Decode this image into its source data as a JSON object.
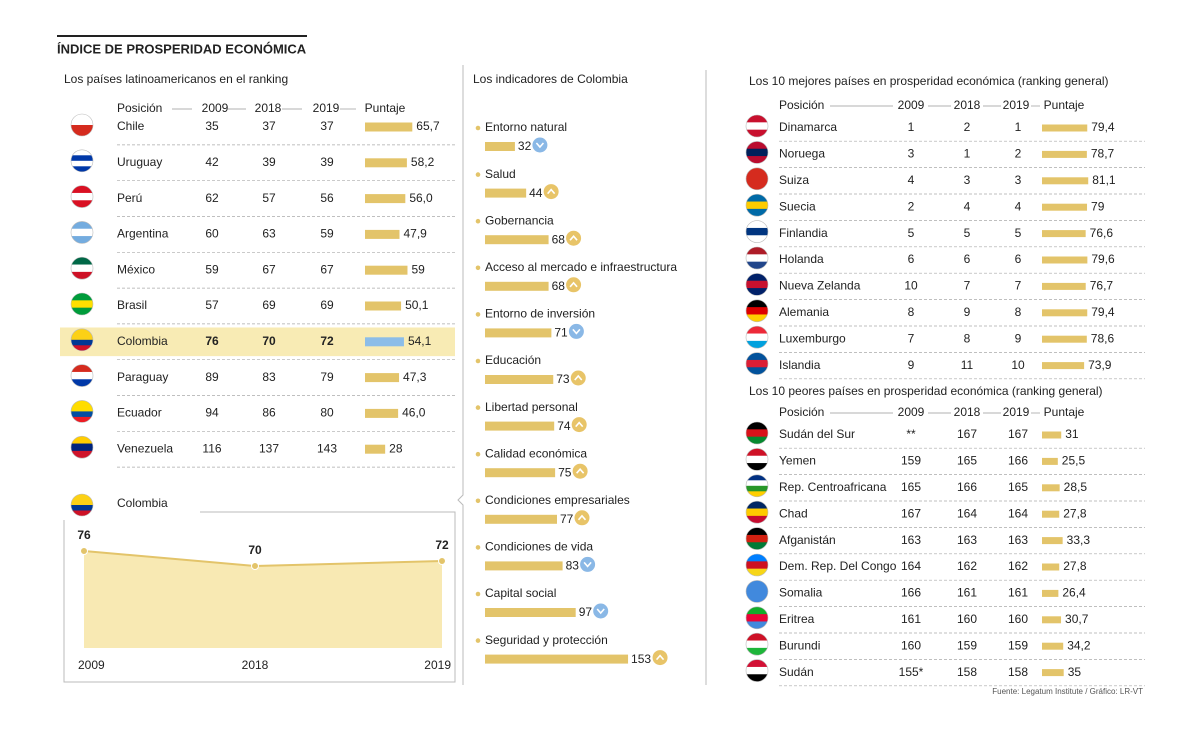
{
  "title": "ÍNDICE DE PROSPERIDAD ECONÓMICA",
  "latam": {
    "subtitle": "Los países latinoamericanos en el ranking",
    "headers": [
      "Posición",
      "2009",
      "2018",
      "2019",
      "Puntaje"
    ],
    "bar_color": "#e3c46a",
    "highlight_color": "#8cbde8",
    "highlight_fill": "#f8ebb4",
    "rows": [
      {
        "country": "Chile",
        "flag": [
          "#ffffff",
          "#d52b1e"
        ],
        "ranks": [
          35,
          37,
          37
        ],
        "score": {
          "value": 65.7,
          "label": "65,7"
        }
      },
      {
        "country": "Uruguay",
        "flag": [
          "#ffffff",
          "#0038a8",
          "#ffffff",
          "#0038a8"
        ],
        "ranks": [
          42,
          39,
          39
        ],
        "score": {
          "value": 58.2,
          "label": "58,2"
        }
      },
      {
        "country": "Perú",
        "flag": [
          "#d91023",
          "#ffffff",
          "#d91023"
        ],
        "ranks": [
          62,
          57,
          56
        ],
        "score": {
          "value": 56,
          "label": "56,0"
        }
      },
      {
        "country": "Argentina",
        "flag": [
          "#74acdf",
          "#ffffff",
          "#74acdf"
        ],
        "ranks": [
          60,
          63,
          59
        ],
        "score": {
          "value": 47.9,
          "label": "47,9"
        }
      },
      {
        "country": "México",
        "flag": [
          "#006847",
          "#ffffff",
          "#ce1126"
        ],
        "ranks": [
          59,
          67,
          67
        ],
        "score": 59
      },
      {
        "country": "Brasil",
        "flag": [
          "#009c3b",
          "#ffdf00",
          "#009c3b"
        ],
        "ranks": [
          57,
          69,
          69
        ],
        "score": {
          "value": 50.1,
          "label": "50,1"
        }
      },
      {
        "country": "Colombia",
        "flag": [
          "#fcd116",
          "#fcd116",
          "#003893",
          "#ce1126"
        ],
        "ranks": [
          76,
          70,
          72
        ],
        "score": {
          "value": 54.1,
          "label": "54,1"
        },
        "highlight": true
      },
      {
        "country": "Paraguay",
        "flag": [
          "#d52b1e",
          "#ffffff",
          "#0038a8"
        ],
        "ranks": [
          89,
          83,
          79
        ],
        "score": {
          "value": 47.3,
          "label": "47,3"
        }
      },
      {
        "country": "Ecuador",
        "flag": [
          "#ffdd00",
          "#ffdd00",
          "#034ea2",
          "#ed1c24"
        ],
        "ranks": [
          94,
          86,
          80
        ],
        "score": {
          "value": 46,
          "label": "46,0"
        }
      },
      {
        "country": "Venezuela",
        "flag": [
          "#ffcc00",
          "#00247d",
          "#cf142b"
        ],
        "ranks": [
          116,
          137,
          143
        ],
        "score": 28
      }
    ]
  },
  "trend": {
    "label": "Colombia",
    "flag": [
      "#fcd116",
      "#fcd116",
      "#003893",
      "#ce1126"
    ],
    "categories": [
      "2009",
      "2018",
      "2019"
    ],
    "values": [
      76,
      70,
      72
    ],
    "color": "#e3c46a",
    "fill": "#f8e9b3"
  },
  "indicators": {
    "title": "Los indicadores de Colombia",
    "bar_color": "#e3c46a",
    "up_color": "#e8c468",
    "down_color": "#8ab8e6",
    "items": [
      {
        "name": "Entorno natural",
        "value": 32,
        "trend": "down"
      },
      {
        "name": "Salud",
        "value": 44,
        "trend": "up"
      },
      {
        "name": "Gobernancia",
        "value": 68,
        "trend": "up"
      },
      {
        "name": "Acceso al mercado e infraestructura",
        "value": 68,
        "trend": "up"
      },
      {
        "name": "Entorno de inversión",
        "value": 71,
        "trend": "down"
      },
      {
        "name": "Educación",
        "value": 73,
        "trend": "up"
      },
      {
        "name": "Libertad personal",
        "value": 74,
        "trend": "up"
      },
      {
        "name": "Calidad económica",
        "value": 75,
        "trend": "up"
      },
      {
        "name": "Condiciones empresariales",
        "value": 77,
        "trend": "up"
      },
      {
        "name": "Condiciones de vida",
        "value": 83,
        "trend": "down"
      },
      {
        "name": "Capital social",
        "value": 97,
        "trend": "down"
      },
      {
        "name": "Seguridad y protección",
        "value": 153,
        "trend": "up"
      }
    ]
  },
  "best": {
    "subtitle": "Los 10 mejores países en prosperidad económica (ranking general)",
    "headers": [
      "Posición",
      "2009",
      "2018",
      "2019",
      "Puntaje"
    ],
    "bar_color": "#e3c46a",
    "rows": [
      {
        "country": "Dinamarca",
        "flag": [
          "#c8102e",
          "#ffffff",
          "#c8102e"
        ],
        "ranks": [
          1,
          2,
          1
        ],
        "score": {
          "value": 79.4,
          "label": "79,4"
        }
      },
      {
        "country": "Noruega",
        "flag": [
          "#ba0c2f",
          "#00205b",
          "#ba0c2f"
        ],
        "ranks": [
          3,
          1,
          2
        ],
        "score": {
          "value": 78.7,
          "label": "78,7"
        }
      },
      {
        "country": "Suiza",
        "flag": [
          "#d52b1e"
        ],
        "ranks": [
          4,
          3,
          3
        ],
        "score": {
          "value": 81.1,
          "label": "81,1"
        }
      },
      {
        "country": "Suecia",
        "flag": [
          "#006aa7",
          "#fecc00",
          "#006aa7"
        ],
        "ranks": [
          2,
          4,
          4
        ],
        "score": 79
      },
      {
        "country": "Finlandia",
        "flag": [
          "#ffffff",
          "#003580",
          "#ffffff"
        ],
        "ranks": [
          5,
          5,
          5
        ],
        "score": {
          "value": 76.6,
          "label": "76,6"
        }
      },
      {
        "country": "Holanda",
        "flag": [
          "#ae1c28",
          "#ffffff",
          "#21468b"
        ],
        "ranks": [
          6,
          6,
          6
        ],
        "score": {
          "value": 79.6,
          "label": "79,6"
        }
      },
      {
        "country": "Nueva Zelanda",
        "flag": [
          "#012169",
          "#c8102e",
          "#012169"
        ],
        "ranks": [
          10,
          7,
          7
        ],
        "score": {
          "value": 76.7,
          "label": "76,7"
        }
      },
      {
        "country": "Alemania",
        "flag": [
          "#000000",
          "#dd0000",
          "#ffce00"
        ],
        "ranks": [
          8,
          9,
          8
        ],
        "score": {
          "value": 79.4,
          "label": "79,4"
        }
      },
      {
        "country": "Luxemburgo",
        "flag": [
          "#ed2939",
          "#ffffff",
          "#00a1de"
        ],
        "ranks": [
          7,
          8,
          9
        ],
        "score": {
          "value": 78.6,
          "label": "78,6"
        }
      },
      {
        "country": "Islandia",
        "flag": [
          "#02529c",
          "#dc1e35",
          "#02529c"
        ],
        "ranks": [
          9,
          11,
          10
        ],
        "score": {
          "value": 73.9,
          "label": "73,9"
        }
      }
    ]
  },
  "worst": {
    "subtitle": "Los 10 peores países en prosperidad económica (ranking general)",
    "headers": [
      "Posición",
      "2009",
      "2018",
      "2019",
      "Puntaje"
    ],
    "bar_color": "#e3c46a",
    "rows": [
      {
        "country": "Sudán del Sur",
        "flag": [
          "#000000",
          "#da121a",
          "#078930"
        ],
        "ranks": [
          "**",
          167,
          167
        ],
        "score": 31
      },
      {
        "country": "Yemen",
        "flag": [
          "#ce1126",
          "#ffffff",
          "#000000"
        ],
        "ranks": [
          159,
          165,
          166
        ],
        "score": {
          "value": 25.5,
          "label": "25,5"
        }
      },
      {
        "country": "Rep. Centroafricana",
        "flag": [
          "#003082",
          "#ffffff",
          "#289728",
          "#ffce00"
        ],
        "ranks": [
          165,
          166,
          165
        ],
        "score": {
          "value": 28.5,
          "label": "28,5"
        }
      },
      {
        "country": "Chad",
        "flag": [
          "#002664",
          "#fecb00",
          "#c60c30"
        ],
        "ranks": [
          167,
          164,
          164
        ],
        "score": {
          "value": 27.8,
          "label": "27,8"
        }
      },
      {
        "country": "Afganistán",
        "flag": [
          "#000000",
          "#d32011",
          "#007a36"
        ],
        "ranks": [
          163,
          163,
          163
        ],
        "score": {
          "value": 33.3,
          "label": "33,3"
        }
      },
      {
        "country": "Dem. Rep. Del Congo",
        "flag": [
          "#007fff",
          "#ce1021",
          "#f7d618"
        ],
        "ranks": [
          164,
          162,
          162
        ],
        "score": {
          "value": 27.8,
          "label": "27,8"
        }
      },
      {
        "country": "Somalia",
        "flag": [
          "#4189dd"
        ],
        "ranks": [
          166,
          161,
          161
        ],
        "score": {
          "value": 26.4,
          "label": "26,4"
        }
      },
      {
        "country": "Eritrea",
        "flag": [
          "#12ad2b",
          "#ea0437",
          "#4189dd"
        ],
        "ranks": [
          161,
          160,
          160
        ],
        "score": {
          "value": 30.7,
          "label": "30,7"
        }
      },
      {
        "country": "Burundi",
        "flag": [
          "#ce1126",
          "#ffffff",
          "#1eb53a"
        ],
        "ranks": [
          160,
          159,
          159
        ],
        "score": {
          "value": 34.2,
          "label": "34,2"
        }
      },
      {
        "country": "Sudán",
        "flag": [
          "#d21034",
          "#ffffff",
          "#000000"
        ],
        "ranks": [
          {
            "value": 155,
            "label": "155*"
          },
          158,
          158
        ],
        "score": 35
      }
    ]
  },
  "source": "Fuente: Legatum Institute / Gráfico: LR-VT"
}
